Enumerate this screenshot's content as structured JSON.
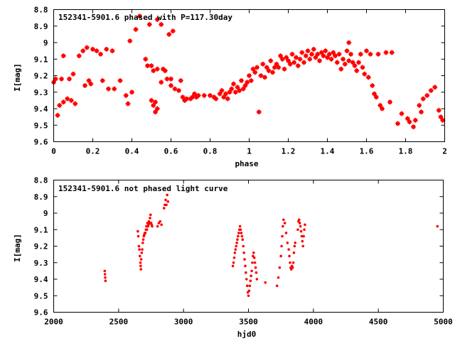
{
  "chart_data": [
    {
      "type": "scatter",
      "title": "152341-5901.6 phased with P=117.30day",
      "xlabel": "phase",
      "ylabel": "I[mag]",
      "xlim": [
        0,
        2
      ],
      "ylim": [
        9.6,
        8.8
      ],
      "y_inverted": true,
      "xticks": [
        0,
        0.2,
        0.4,
        0.6,
        0.8,
        1,
        1.2,
        1.4,
        1.6,
        1.8,
        2
      ],
      "yticks": [
        8.8,
        8.9,
        9,
        9.1,
        9.2,
        9.3,
        9.4,
        9.5,
        9.6
      ],
      "xtick_labels": [
        "0",
        "0.2",
        "0.4",
        "0.6",
        "0.8",
        "1",
        "1.2",
        "1.4",
        "1.6",
        "1.8",
        "2"
      ],
      "ytick_labels": [
        "8.8",
        "8.9",
        "9",
        "9.1",
        "9.2",
        "9.3",
        "9.4",
        "9.5",
        "9.6"
      ],
      "grid": false,
      "color": "#ff0000",
      "points": [
        [
          0.0,
          9.24
        ],
        [
          0.01,
          9.22
        ],
        [
          0.02,
          9.44
        ],
        [
          0.03,
          9.38
        ],
        [
          0.04,
          9.22
        ],
        [
          0.05,
          9.08
        ],
        [
          0.05,
          9.36
        ],
        [
          0.07,
          9.34
        ],
        [
          0.08,
          9.22
        ],
        [
          0.09,
          9.35
        ],
        [
          0.1,
          9.19
        ],
        [
          0.11,
          9.37
        ],
        [
          0.13,
          9.08
        ],
        [
          0.15,
          9.05
        ],
        [
          0.16,
          9.26
        ],
        [
          0.17,
          9.03
        ],
        [
          0.18,
          9.23
        ],
        [
          0.19,
          9.25
        ],
        [
          0.2,
          9.04
        ],
        [
          0.22,
          9.05
        ],
        [
          0.24,
          9.07
        ],
        [
          0.25,
          9.23
        ],
        [
          0.27,
          9.04
        ],
        [
          0.28,
          9.28
        ],
        [
          0.3,
          9.05
        ],
        [
          0.31,
          9.28
        ],
        [
          0.34,
          9.23
        ],
        [
          0.37,
          9.32
        ],
        [
          0.38,
          9.37
        ],
        [
          0.39,
          8.99
        ],
        [
          0.4,
          9.3
        ],
        [
          0.42,
          8.92
        ],
        [
          0.44,
          8.84
        ],
        [
          0.47,
          9.1
        ],
        [
          0.48,
          9.14
        ],
        [
          0.49,
          8.89
        ],
        [
          0.5,
          9.14
        ],
        [
          0.51,
          9.17
        ],
        [
          0.5,
          9.35
        ],
        [
          0.51,
          9.38
        ],
        [
          0.52,
          9.42
        ],
        [
          0.52,
          9.36
        ],
        [
          0.53,
          9.4
        ],
        [
          0.53,
          9.16
        ],
        [
          0.53,
          8.86
        ],
        [
          0.55,
          8.89
        ],
        [
          0.55,
          9.24
        ],
        [
          0.56,
          9.16
        ],
        [
          0.57,
          9.17
        ],
        [
          0.58,
          9.22
        ],
        [
          0.59,
          8.95
        ],
        [
          0.6,
          9.22
        ],
        [
          0.6,
          9.26
        ],
        [
          0.61,
          8.93
        ],
        [
          0.62,
          9.28
        ],
        [
          0.64,
          9.29
        ],
        [
          0.65,
          9.23
        ],
        [
          0.66,
          9.33
        ],
        [
          0.67,
          9.35
        ],
        [
          0.68,
          9.34
        ],
        [
          0.7,
          9.34
        ],
        [
          0.71,
          9.33
        ],
        [
          0.72,
          9.31
        ],
        [
          0.73,
          9.33
        ],
        [
          0.74,
          9.32
        ],
        [
          0.77,
          9.32
        ],
        [
          0.8,
          9.32
        ],
        [
          0.82,
          9.33
        ],
        [
          0.83,
          9.34
        ],
        [
          0.85,
          9.31
        ],
        [
          0.86,
          9.29
        ],
        [
          0.87,
          9.33
        ],
        [
          0.88,
          9.31
        ],
        [
          0.89,
          9.34
        ],
        [
          0.9,
          9.3
        ],
        [
          0.91,
          9.28
        ],
        [
          0.92,
          9.25
        ],
        [
          0.93,
          9.3
        ],
        [
          0.94,
          9.27
        ],
        [
          0.95,
          9.29
        ],
        [
          0.96,
          9.23
        ],
        [
          0.97,
          9.28
        ],
        [
          0.98,
          9.26
        ],
        [
          0.99,
          9.24
        ],
        [
          1.0,
          9.2
        ],
        [
          1.01,
          9.23
        ],
        [
          1.02,
          9.16
        ],
        [
          1.03,
          9.18
        ],
        [
          1.04,
          9.15
        ],
        [
          1.05,
          9.42
        ],
        [
          1.06,
          9.2
        ],
        [
          1.07,
          9.13
        ],
        [
          1.08,
          9.21
        ],
        [
          1.09,
          9.15
        ],
        [
          1.1,
          9.17
        ],
        [
          1.11,
          9.11
        ],
        [
          1.12,
          9.18
        ],
        [
          1.13,
          9.15
        ],
        [
          1.14,
          9.13
        ],
        [
          1.15,
          9.15
        ],
        [
          1.16,
          9.08
        ],
        [
          1.17,
          9.1
        ],
        [
          1.18,
          9.16
        ],
        [
          1.19,
          9.09
        ],
        [
          1.2,
          9.11
        ],
        [
          1.21,
          9.13
        ],
        [
          1.22,
          9.07
        ],
        [
          1.23,
          9.12
        ],
        [
          1.24,
          9.09
        ],
        [
          1.25,
          9.14
        ],
        [
          1.26,
          9.1
        ],
        [
          1.27,
          9.06
        ],
        [
          1.28,
          9.12
        ],
        [
          1.29,
          9.08
        ],
        [
          1.3,
          9.05
        ],
        [
          1.31,
          9.1
        ],
        [
          1.32,
          9.07
        ],
        [
          1.33,
          9.04
        ],
        [
          1.34,
          9.09
        ],
        [
          1.35,
          9.07
        ],
        [
          1.36,
          9.11
        ],
        [
          1.37,
          9.06
        ],
        [
          1.38,
          9.08
        ],
        [
          1.39,
          9.05
        ],
        [
          1.4,
          9.09
        ],
        [
          1.41,
          9.07
        ],
        [
          1.42,
          9.1
        ],
        [
          1.43,
          9.06
        ],
        [
          1.44,
          9.08
        ],
        [
          1.45,
          9.12
        ],
        [
          1.46,
          9.07
        ],
        [
          1.47,
          9.16
        ],
        [
          1.48,
          9.1
        ],
        [
          1.49,
          9.13
        ],
        [
          1.5,
          9.05
        ],
        [
          1.51,
          9.0
        ],
        [
          1.51,
          9.11
        ],
        [
          1.52,
          9.07
        ],
        [
          1.53,
          9.12
        ],
        [
          1.54,
          9.14
        ],
        [
          1.55,
          9.17
        ],
        [
          1.56,
          9.12
        ],
        [
          1.57,
          9.07
        ],
        [
          1.58,
          9.15
        ],
        [
          1.59,
          9.19
        ],
        [
          1.6,
          9.05
        ],
        [
          1.61,
          9.21
        ],
        [
          1.62,
          9.07
        ],
        [
          1.63,
          9.26
        ],
        [
          1.64,
          9.31
        ],
        [
          1.65,
          9.33
        ],
        [
          1.66,
          9.07
        ],
        [
          1.67,
          9.38
        ],
        [
          1.68,
          9.4
        ],
        [
          1.7,
          9.06
        ],
        [
          1.72,
          9.36
        ],
        [
          1.73,
          9.06
        ],
        [
          1.76,
          9.49
        ],
        [
          1.78,
          9.43
        ],
        [
          1.81,
          9.46
        ],
        [
          1.82,
          9.48
        ],
        [
          1.84,
          9.51
        ],
        [
          1.85,
          9.47
        ],
        [
          1.87,
          9.38
        ],
        [
          1.88,
          9.42
        ],
        [
          1.89,
          9.34
        ],
        [
          1.91,
          9.32
        ],
        [
          1.93,
          9.29
        ],
        [
          1.95,
          9.27
        ],
        [
          1.97,
          9.41
        ],
        [
          1.98,
          9.45
        ],
        [
          1.99,
          9.47
        ]
      ]
    },
    {
      "type": "scatter",
      "title": "152341-5901.6 not phased light curve",
      "xlabel": "hjd0",
      "ylabel": "I[mag]",
      "xlim": [
        2000,
        5000
      ],
      "ylim": [
        9.6,
        8.8
      ],
      "y_inverted": true,
      "xticks": [
        2000,
        2500,
        3000,
        3500,
        4000,
        4500,
        5000
      ],
      "yticks": [
        8.8,
        8.9,
        9,
        9.1,
        9.2,
        9.3,
        9.4,
        9.5,
        9.6
      ],
      "xtick_labels": [
        "2000",
        "2500",
        "3000",
        "3500",
        "4000",
        "4500",
        "5000"
      ],
      "ytick_labels": [
        "8.8",
        "8.9",
        "9",
        "9.1",
        "9.2",
        "9.3",
        "9.4",
        "9.5",
        "9.6"
      ],
      "grid": false,
      "color": "#ff0000",
      "points": [
        [
          2393,
          9.35
        ],
        [
          2395,
          9.37
        ],
        [
          2397,
          9.39
        ],
        [
          2399,
          9.41
        ],
        [
          2648,
          9.11
        ],
        [
          2652,
          9.14
        ],
        [
          2656,
          9.2
        ],
        [
          2660,
          9.22
        ],
        [
          2664,
          9.26
        ],
        [
          2668,
          9.3
        ],
        [
          2670,
          9.32
        ],
        [
          2672,
          9.34
        ],
        [
          2674,
          9.28
        ],
        [
          2678,
          9.24
        ],
        [
          2682,
          9.22
        ],
        [
          2686,
          9.18
        ],
        [
          2690,
          9.16
        ],
        [
          2694,
          9.14
        ],
        [
          2698,
          9.13
        ],
        [
          2702,
          9.12
        ],
        [
          2706,
          9.12
        ],
        [
          2710,
          9.1
        ],
        [
          2714,
          9.08
        ],
        [
          2718,
          9.1
        ],
        [
          2722,
          9.06
        ],
        [
          2726,
          9.08
        ],
        [
          2730,
          9.07
        ],
        [
          2734,
          9.05
        ],
        [
          2738,
          9.06
        ],
        [
          2742,
          9.03
        ],
        [
          2746,
          9.01
        ],
        [
          2750,
          9.06
        ],
        [
          2754,
          9.07
        ],
        [
          2758,
          9.08
        ],
        [
          2800,
          9.08
        ],
        [
          2810,
          9.06
        ],
        [
          2820,
          9.05
        ],
        [
          2830,
          9.07
        ],
        [
          2850,
          8.97
        ],
        [
          2856,
          8.95
        ],
        [
          2862,
          8.92
        ],
        [
          2868,
          8.95
        ],
        [
          2874,
          8.89
        ],
        [
          2880,
          8.93
        ],
        [
          3380,
          9.32
        ],
        [
          3385,
          9.3
        ],
        [
          3390,
          9.27
        ],
        [
          3395,
          9.24
        ],
        [
          3400,
          9.22
        ],
        [
          3405,
          9.2
        ],
        [
          3410,
          9.18
        ],
        [
          3415,
          9.16
        ],
        [
          3420,
          9.14
        ],
        [
          3425,
          9.12
        ],
        [
          3430,
          9.1
        ],
        [
          3435,
          9.08
        ],
        [
          3440,
          9.1
        ],
        [
          3445,
          9.12
        ],
        [
          3450,
          9.14
        ],
        [
          3455,
          9.16
        ],
        [
          3460,
          9.2
        ],
        [
          3465,
          9.24
        ],
        [
          3470,
          9.28
        ],
        [
          3475,
          9.32
        ],
        [
          3480,
          9.36
        ],
        [
          3485,
          9.4
        ],
        [
          3490,
          9.44
        ],
        [
          3495,
          9.48
        ],
        [
          3500,
          9.5
        ],
        [
          3505,
          9.47
        ],
        [
          3510,
          9.44
        ],
        [
          3515,
          9.41
        ],
        [
          3520,
          9.38
        ],
        [
          3525,
          9.35
        ],
        [
          3530,
          9.3
        ],
        [
          3535,
          9.26
        ],
        [
          3540,
          9.24
        ],
        [
          3545,
          9.27
        ],
        [
          3550,
          9.3
        ],
        [
          3555,
          9.33
        ],
        [
          3560,
          9.36
        ],
        [
          3565,
          9.4
        ],
        [
          3630,
          9.42
        ],
        [
          3720,
          9.44
        ],
        [
          3730,
          9.39
        ],
        [
          3740,
          9.33
        ],
        [
          3750,
          9.26
        ],
        [
          3755,
          9.2
        ],
        [
          3760,
          9.14
        ],
        [
          3765,
          9.08
        ],
        [
          3770,
          9.04
        ],
        [
          3780,
          9.06
        ],
        [
          3790,
          9.12
        ],
        [
          3800,
          9.18
        ],
        [
          3810,
          9.22
        ],
        [
          3815,
          9.26
        ],
        [
          3820,
          9.3
        ],
        [
          3825,
          9.33
        ],
        [
          3830,
          9.34
        ],
        [
          3835,
          9.32
        ],
        [
          3840,
          9.33
        ],
        [
          3845,
          9.3
        ],
        [
          3850,
          9.24
        ],
        [
          3855,
          9.2
        ],
        [
          3860,
          9.18
        ],
        [
          3880,
          9.1
        ],
        [
          3885,
          9.05
        ],
        [
          3890,
          9.04
        ],
        [
          3895,
          9.06
        ],
        [
          3900,
          9.08
        ],
        [
          3905,
          9.11
        ],
        [
          3910,
          9.14
        ],
        [
          3915,
          9.17
        ],
        [
          3920,
          9.2
        ],
        [
          3925,
          9.14
        ],
        [
          3930,
          9.1
        ],
        [
          3935,
          9.07
        ],
        [
          4955,
          9.08
        ]
      ]
    }
  ]
}
